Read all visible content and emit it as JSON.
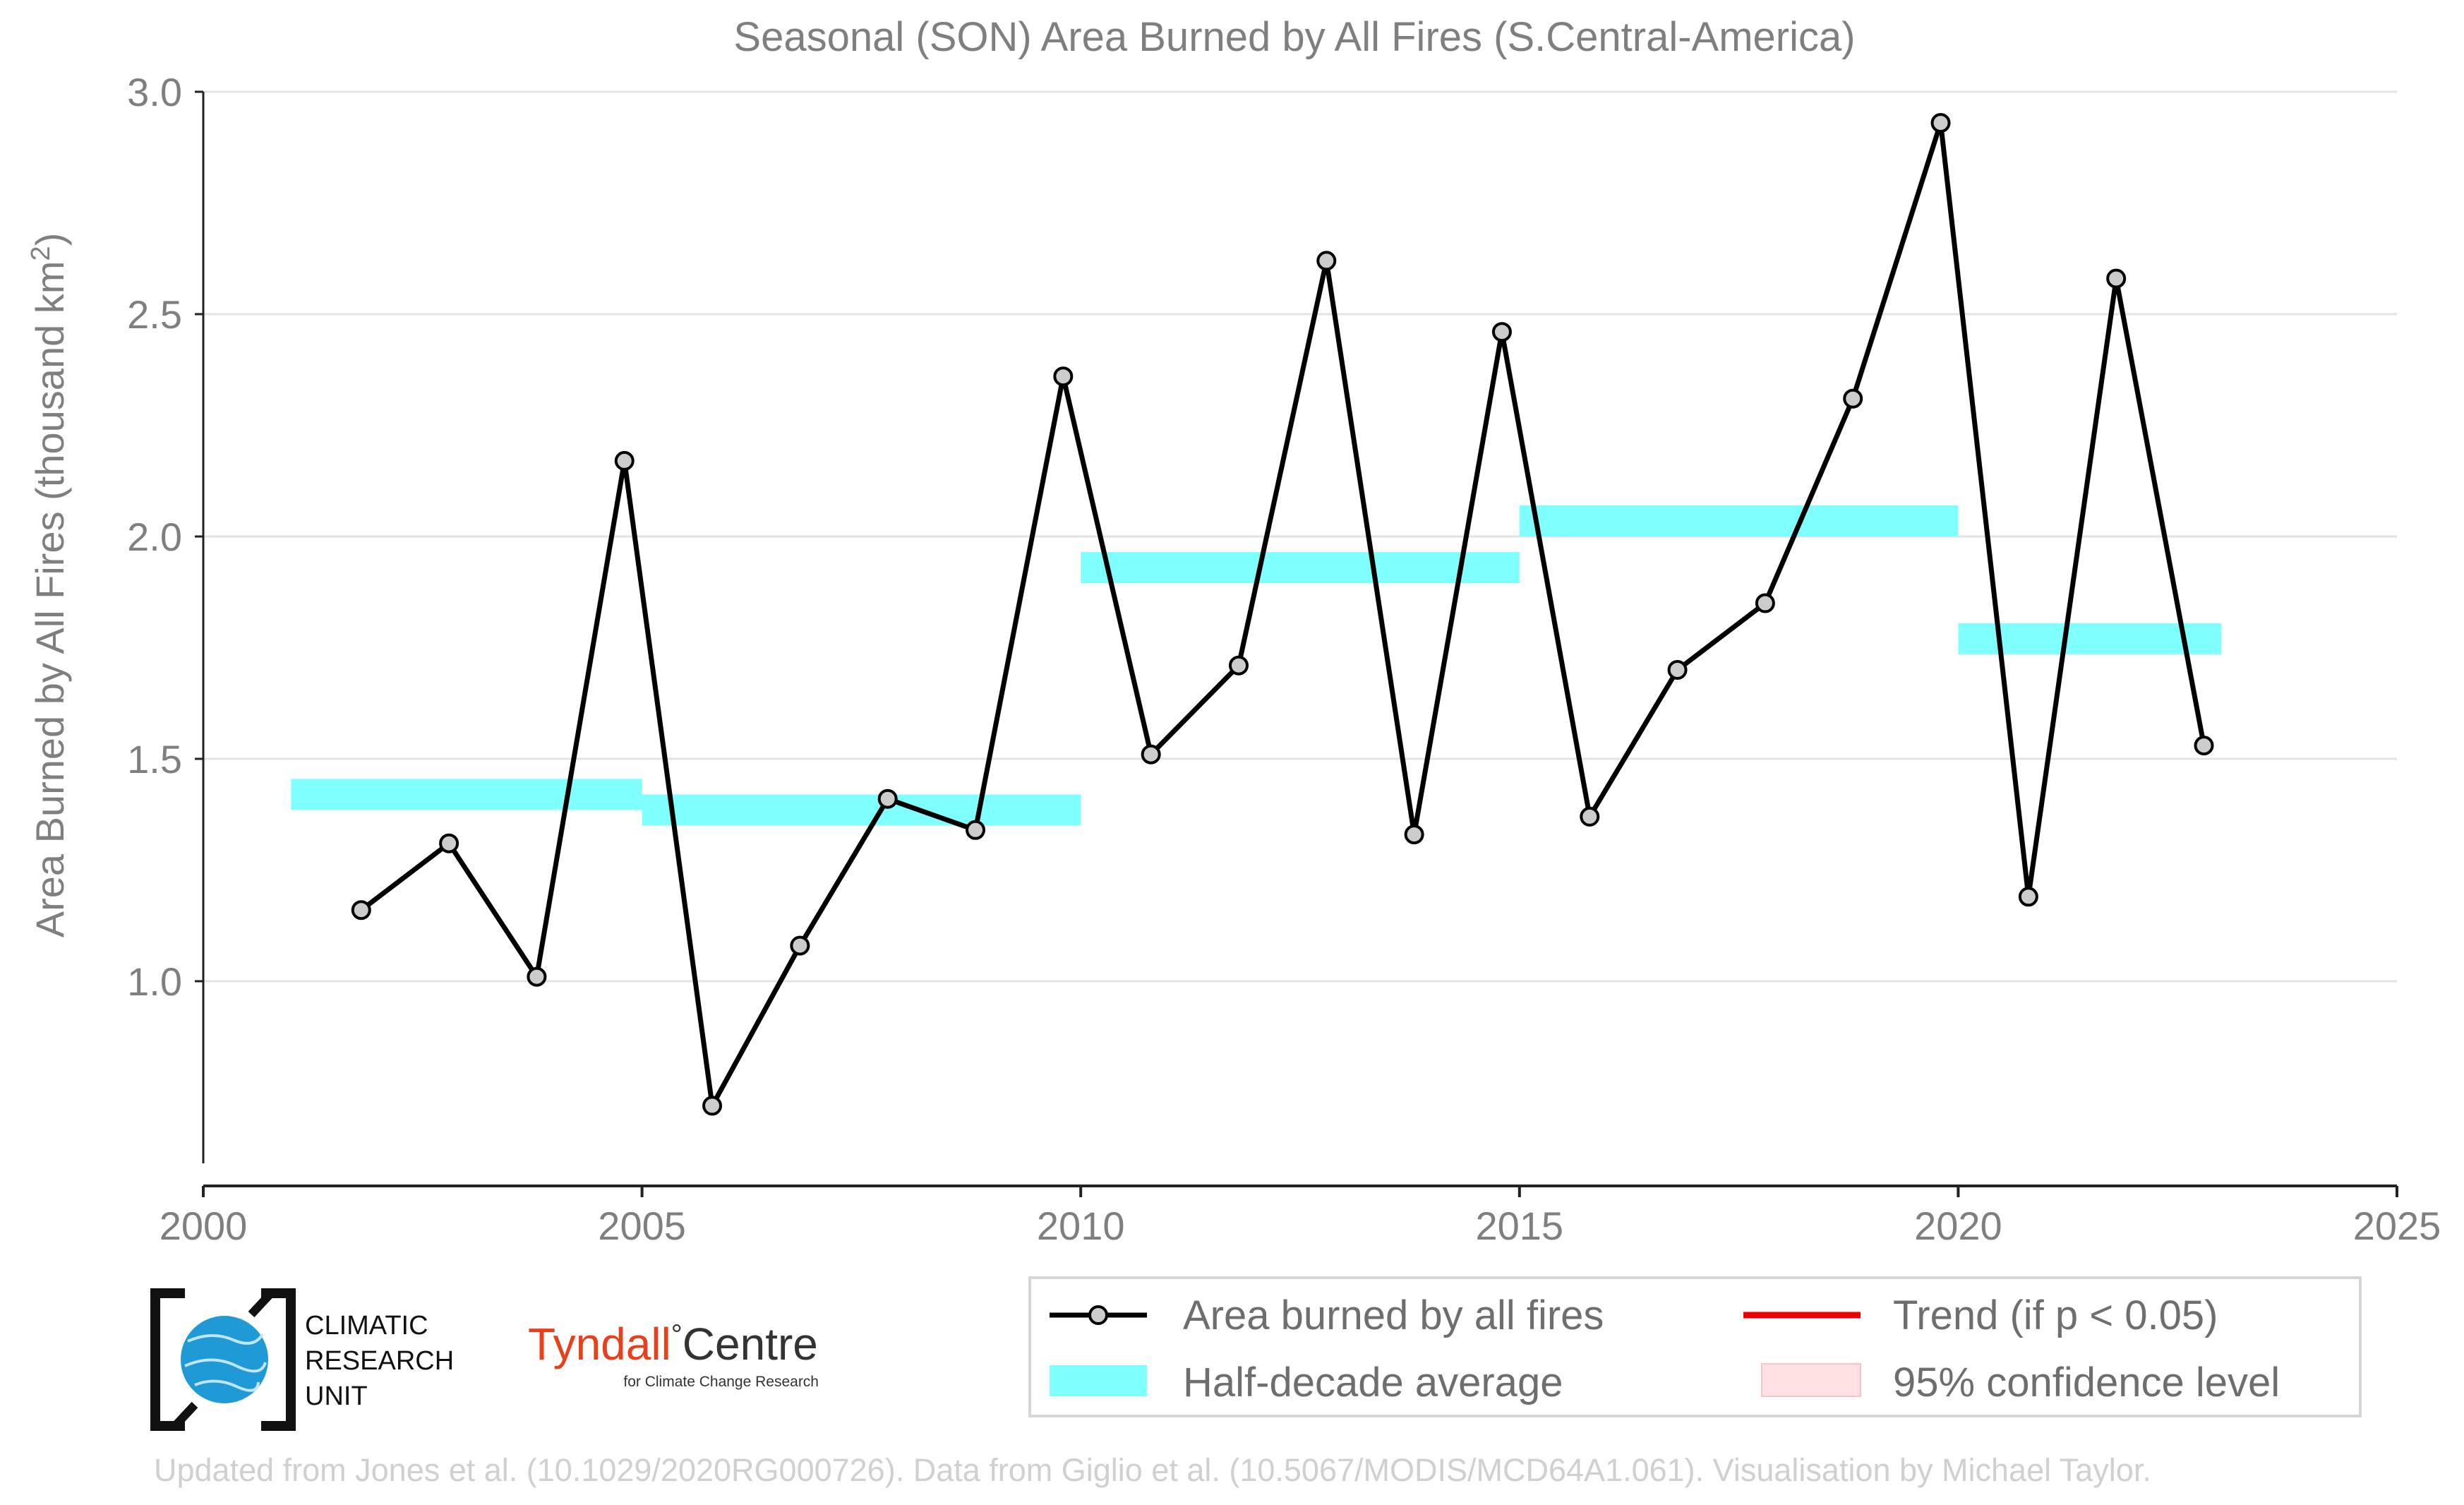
{
  "chart_data": {
    "type": "line",
    "title": "Seasonal (SON) Area Burned by All Fires (S.Central-America)",
    "ylabel_main": "Area Burned by All Fires (thousand km",
    "ylabel_sup": "2",
    "ylabel_close": ")",
    "xlabel": "",
    "xlim": [
      2000,
      2025
    ],
    "ylim": [
      0.72,
      3.0
    ],
    "xticks": [
      "2000",
      "2005",
      "2010",
      "2015",
      "2020",
      "2025"
    ],
    "yticks": [
      "1.0",
      "1.5",
      "2.0",
      "2.5",
      "3.0"
    ],
    "grid": "horizontal",
    "series": [
      {
        "name": "Area burned by all fires",
        "color": "#000000",
        "marker_fill": "#cccccc",
        "x": [
          2001.8,
          2002.8,
          2003.8,
          2004.8,
          2005.8,
          2006.8,
          2007.8,
          2008.8,
          2009.8,
          2010.8,
          2011.8,
          2012.8,
          2013.8,
          2014.8,
          2015.8,
          2016.8,
          2017.8,
          2018.8,
          2019.8,
          2020.8,
          2021.8,
          2022.8
        ],
        "y": [
          1.16,
          1.31,
          1.01,
          2.17,
          0.72,
          1.08,
          1.41,
          1.34,
          2.36,
          1.51,
          1.71,
          2.62,
          1.33,
          2.46,
          1.37,
          1.7,
          1.85,
          2.31,
          2.93,
          1.19,
          2.58,
          1.53
        ]
      }
    ],
    "half_decade": {
      "name": "Half-decade average",
      "color": "#80ffff",
      "segments": [
        {
          "x0": 2001.0,
          "x1": 2005.0,
          "y": 1.42
        },
        {
          "x0": 2005.0,
          "x1": 2010.0,
          "y": 1.385
        },
        {
          "x0": 2010.0,
          "x1": 2015.0,
          "y": 1.93
        },
        {
          "x0": 2015.0,
          "x1": 2020.0,
          "y": 2.035
        },
        {
          "x0": 2020.0,
          "x1": 2023.0,
          "y": 1.77
        }
      ]
    },
    "legend": {
      "placement": "bottom-right",
      "entries": [
        {
          "label": "Area burned by all fires",
          "kind": "line-marker",
          "color": "#000000"
        },
        {
          "label": "Trend (if p < 0.05)",
          "kind": "line",
          "color": "#ee0000"
        },
        {
          "label": "Half-decade average",
          "kind": "band",
          "color": "#80ffff"
        },
        {
          "label": "95% confidence level",
          "kind": "band",
          "color": "#ffe0e3"
        }
      ]
    }
  },
  "logos": {
    "cru": {
      "line1": "CLIMATIC",
      "line2": "RESEARCH",
      "line3": "UNIT"
    },
    "tyndall": {
      "name_a": "Tyndall",
      "degree": "°",
      "name_b": "Centre",
      "tagline": "for Climate Change Research"
    }
  },
  "footer": {
    "credit": "Updated from Jones et al. (10.1029/2020RG000726). Data from Giglio et al. (10.5067/MODIS/MCD64A1.061). Visualisation by Michael Taylor."
  },
  "colors": {
    "axis_text": "#7f7f7f",
    "gridline": "#e3e3e3",
    "tyndall_red": "#e8401c",
    "cru_blue": "#1f9ad6",
    "footer_text": "#d0d0d0"
  }
}
